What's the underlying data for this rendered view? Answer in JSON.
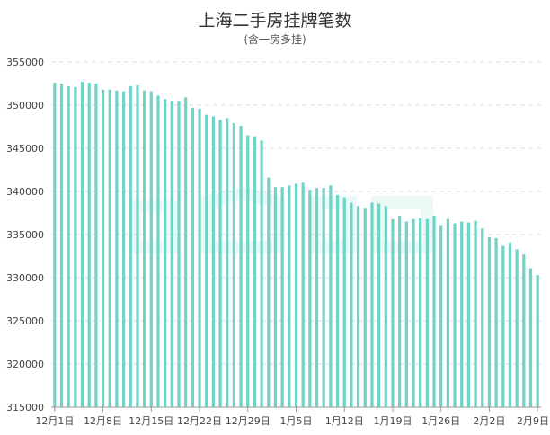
{
  "chart_data": {
    "type": "bar",
    "title": "上海二手房挂牌笔数",
    "subtitle": "(含一房多挂)",
    "xlabel": "",
    "ylabel": "",
    "ylim": [
      315000,
      355000
    ],
    "yticks": [
      315000,
      320000,
      325000,
      330000,
      335000,
      340000,
      345000,
      350000,
      355000
    ],
    "xtick_labels": [
      "12月1日",
      "12月8日",
      "12月15日",
      "12月22日",
      "12月29日",
      "1月5日",
      "1月12日",
      "1月19日",
      "1月26日",
      "2月2日",
      "2月9日"
    ],
    "grid": true,
    "bar_color": "#6fd3c7",
    "categories": [
      "12月1日",
      "12月2日",
      "12月3日",
      "12月4日",
      "12月5日",
      "12月6日",
      "12月7日",
      "12月8日",
      "12月9日",
      "12月10日",
      "12月11日",
      "12月12日",
      "12月13日",
      "12月14日",
      "12月15日",
      "12月16日",
      "12月17日",
      "12月18日",
      "12月19日",
      "12月20日",
      "12月21日",
      "12月22日",
      "12月23日",
      "12月24日",
      "12月25日",
      "12月26日",
      "12月27日",
      "12月28日",
      "12月29日",
      "12月30日",
      "12月31日",
      "1月1日",
      "1月2日",
      "1月3日",
      "1月4日",
      "1月5日",
      "1月6日",
      "1月7日",
      "1月8日",
      "1月9日",
      "1月10日",
      "1月11日",
      "1月12日",
      "1月13日",
      "1月14日",
      "1月15日",
      "1月16日",
      "1月17日",
      "1月18日",
      "1月19日",
      "1月20日",
      "1月21日",
      "1月22日",
      "1月23日",
      "1月24日",
      "1月25日",
      "1月26日",
      "1月27日",
      "1月28日",
      "1月29日",
      "1月30日",
      "1月31日",
      "2月1日",
      "2月2日",
      "2月3日",
      "2月4日",
      "2月5日",
      "2月6日",
      "2月7日",
      "2月8日",
      "2月9日"
    ],
    "values": [
      352600,
      352500,
      352200,
      352100,
      352700,
      352600,
      352500,
      351800,
      351800,
      351700,
      351600,
      352200,
      352300,
      351700,
      351600,
      351100,
      350700,
      350500,
      350500,
      350900,
      349700,
      349600,
      348900,
      348700,
      348300,
      348500,
      347900,
      347600,
      346500,
      346400,
      345900,
      341600,
      340500,
      340500,
      340700,
      340900,
      341000,
      340200,
      340400,
      340400,
      340700,
      339600,
      339300,
      338700,
      338300,
      338100,
      338700,
      338600,
      338300,
      336800,
      337200,
      336500,
      336800,
      336900,
      336800,
      337200,
      336100,
      336800,
      336300,
      336500,
      336400,
      336600,
      335700,
      334700,
      334600,
      333700,
      334100,
      333300,
      332700,
      331100,
      330300
    ]
  },
  "watermark": {
    "icon": "house-logo-icon",
    "color": "#6fd3c7"
  }
}
